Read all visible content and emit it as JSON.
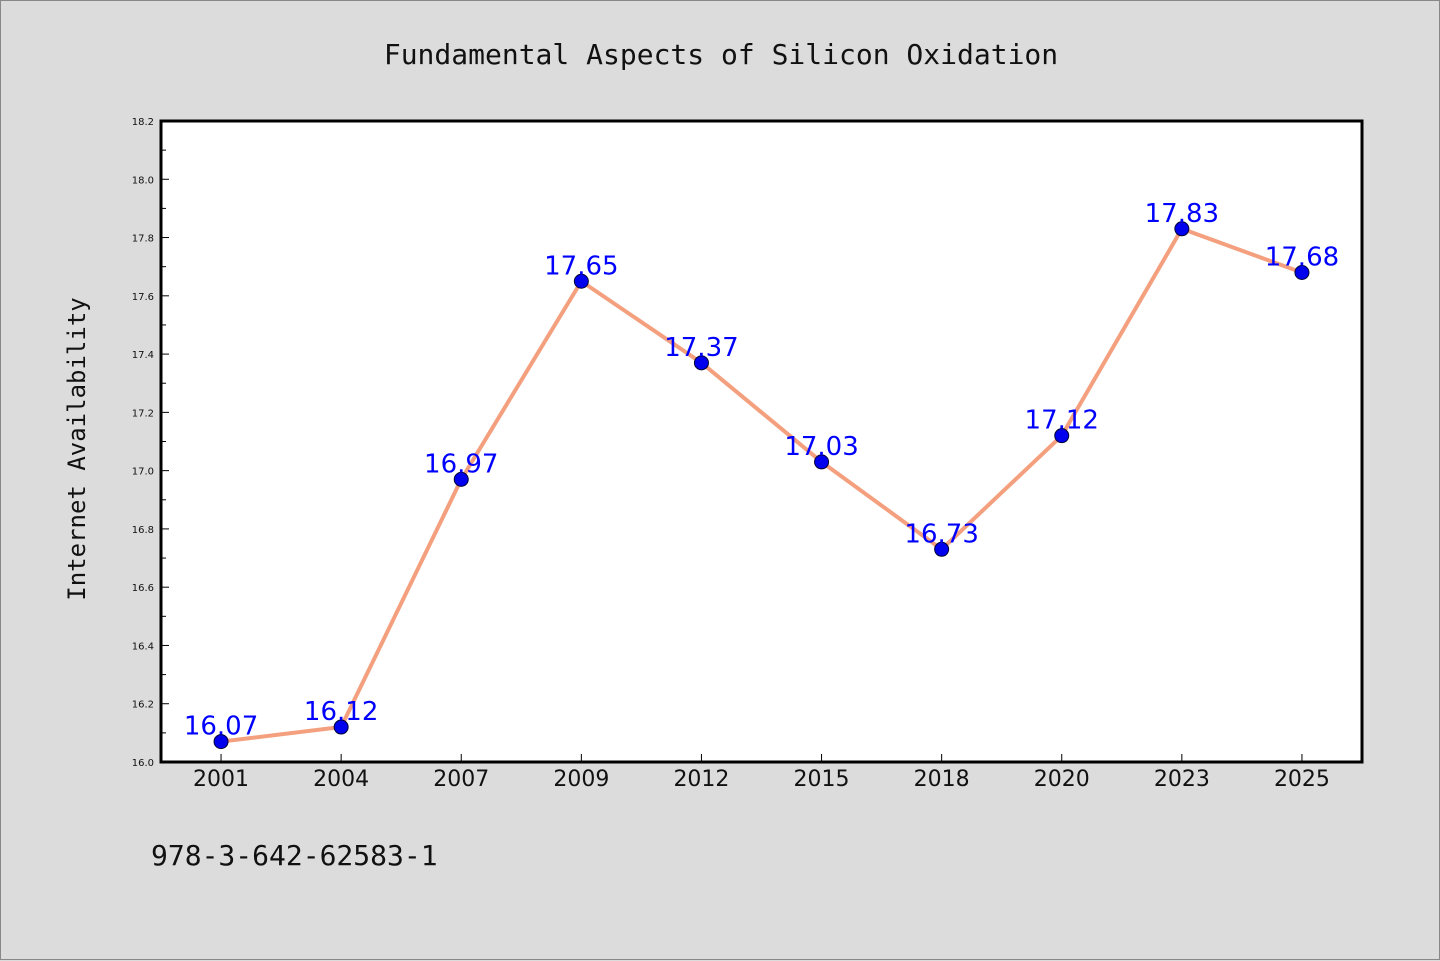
{
  "chart_data": {
    "type": "line",
    "title": "Fundamental Aspects of Silicon Oxidation",
    "xlabel": "",
    "ylabel": "Internet Availability",
    "categories": [
      "2001",
      "2004",
      "2007",
      "2009",
      "2012",
      "2015",
      "2018",
      "2020",
      "2023",
      "2025"
    ],
    "series": [
      {
        "values": [
          16.07,
          16.12,
          16.97,
          17.65,
          17.37,
          17.03,
          16.73,
          17.12,
          17.83,
          17.68
        ]
      }
    ],
    "data_labels": [
      "16.07",
      "16.12",
      "16.97",
      "17.65",
      "17.37",
      "17.03",
      "16.73",
      "17.12",
      "17.83",
      "17.68"
    ],
    "ylim": [
      16.0,
      18.2
    ],
    "yticks": [
      "16.0",
      "16.2",
      "16.4",
      "16.6",
      "16.8",
      "17.0",
      "17.2",
      "17.4",
      "17.6",
      "17.8",
      "18.0",
      "18.2"
    ],
    "grid": false,
    "legend": "none",
    "colors": {
      "line": "#f4a07e",
      "marker": "#0000ee",
      "data_label": "#0000ff",
      "background": "#dcdcdc",
      "plot_background": "#ffffff"
    }
  },
  "footer": {
    "isbn": "978-3-642-62583-1"
  }
}
